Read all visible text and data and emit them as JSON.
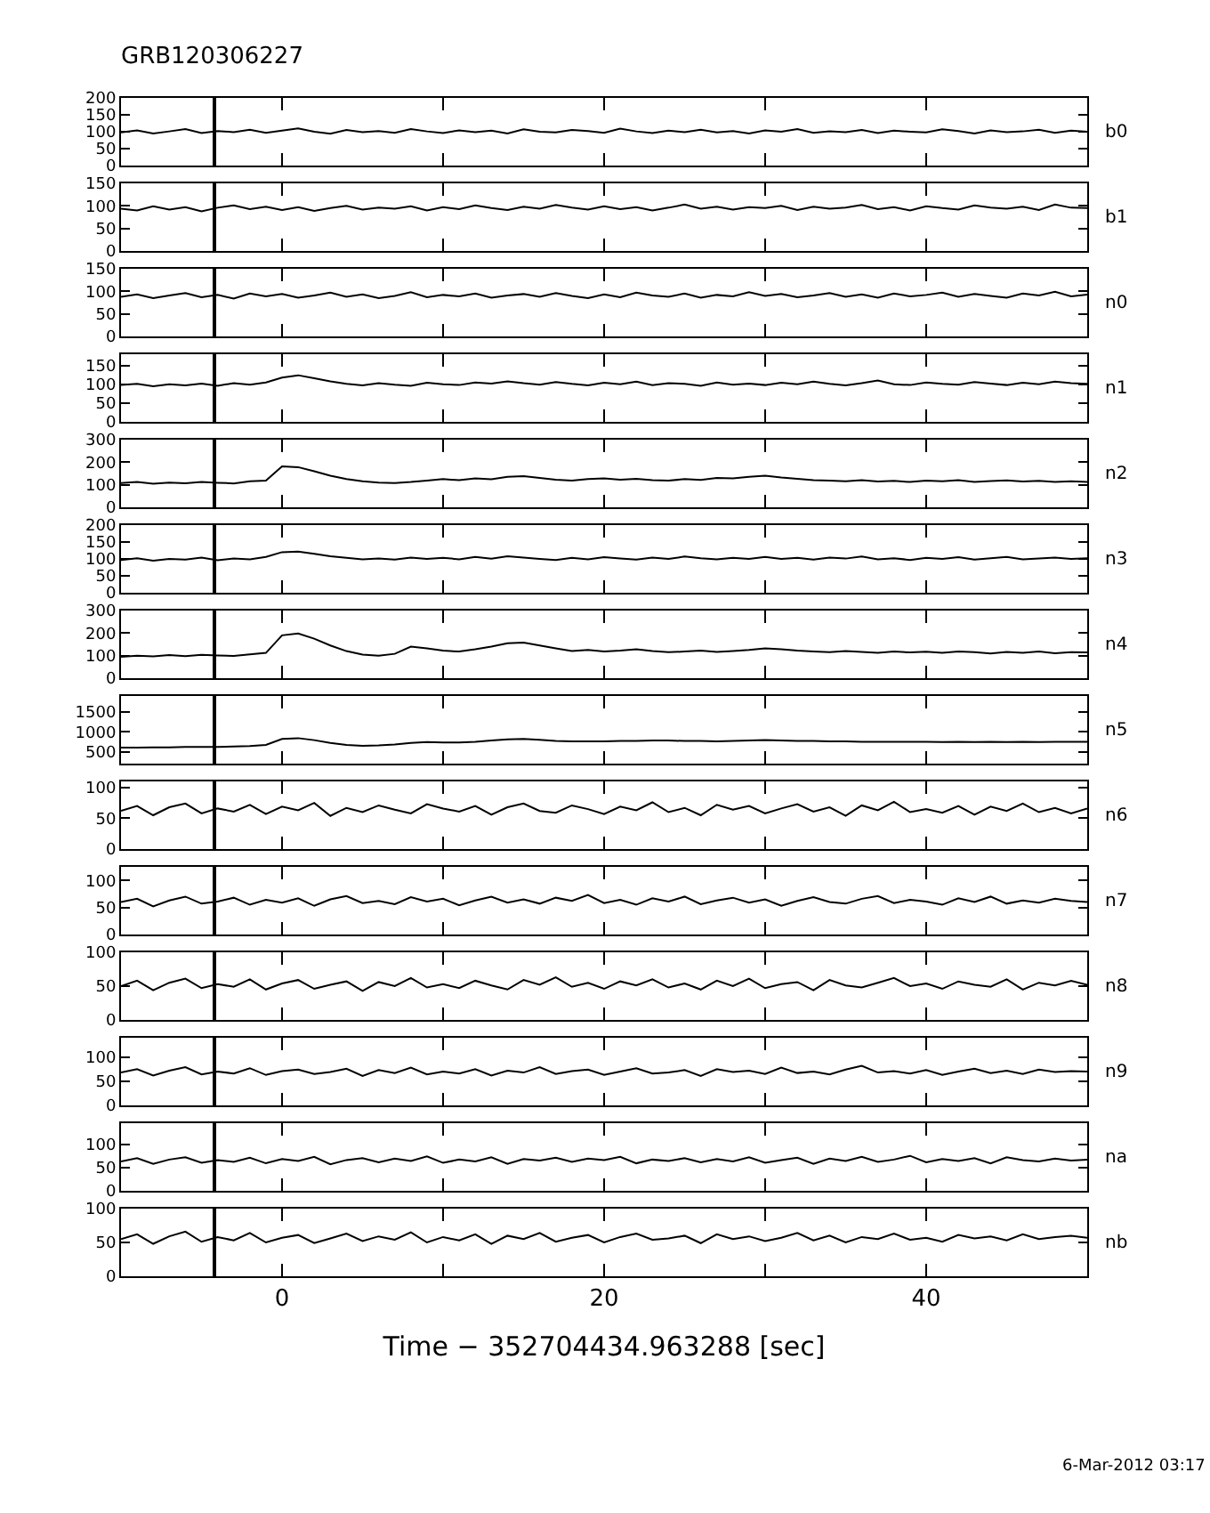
{
  "chart_data": [
    {
      "type": "line",
      "title": "GRB120306227",
      "x": [
        -10,
        -9,
        -8,
        -7,
        -6,
        -5,
        -4,
        -3,
        -2,
        -1,
        0,
        1,
        2,
        3,
        4,
        5,
        6,
        7,
        8,
        9,
        10,
        11,
        12,
        13,
        14,
        15,
        16,
        17,
        18,
        19,
        20,
        21,
        22,
        23,
        24,
        25,
        26,
        27,
        28,
        29,
        30,
        31,
        32,
        33,
        34,
        35,
        36,
        37,
        38,
        39,
        40,
        41,
        42,
        43,
        44,
        45,
        46,
        47,
        48,
        49,
        50
      ],
      "xlim": [
        -10,
        50
      ],
      "xticks": [
        {
          "value": 0,
          "label": null
        },
        {
          "value": 10,
          "label": null
        },
        {
          "value": 20,
          "label": null
        },
        {
          "value": 30,
          "label": null
        },
        {
          "value": 40,
          "label": null
        }
      ],
      "ylim": [
        0,
        200
      ],
      "yticks": [
        0,
        50,
        100,
        150,
        200
      ],
      "tick_labels": "y",
      "ref_lines": [
        {
          "axis": "x",
          "value": -4.2
        }
      ],
      "series": [
        {
          "name": "b0",
          "color": "#000000",
          "values": [
            98,
            104,
            95,
            101,
            108,
            96,
            102,
            99,
            106,
            97,
            103,
            110,
            100,
            94,
            105,
            99,
            102,
            97,
            108,
            101,
            96,
            104,
            99,
            103,
            95,
            107,
            100,
            98,
            105,
            102,
            97,
            109,
            101,
            96,
            103,
            99,
            106,
            98,
            102,
            95,
            104,
            100,
            108,
            97,
            101,
            99,
            105,
            96,
            103,
            100,
            98,
            107,
            102,
            95,
            104,
            99,
            101,
            106,
            97,
            103,
            100
          ]
        }
      ]
    },
    {
      "type": "line",
      "x": [
        -10,
        -9,
        -8,
        -7,
        -6,
        -5,
        -4,
        -3,
        -2,
        -1,
        0,
        1,
        2,
        3,
        4,
        5,
        6,
        7,
        8,
        9,
        10,
        11,
        12,
        13,
        14,
        15,
        16,
        17,
        18,
        19,
        20,
        21,
        22,
        23,
        24,
        25,
        26,
        27,
        28,
        29,
        30,
        31,
        32,
        33,
        34,
        35,
        36,
        37,
        38,
        39,
        40,
        41,
        42,
        43,
        44,
        45,
        46,
        47,
        48,
        49,
        50
      ],
      "xlim": [
        -10,
        50
      ],
      "xticks": [
        {
          "value": 0,
          "label": null
        },
        {
          "value": 10,
          "label": null
        },
        {
          "value": 20,
          "label": null
        },
        {
          "value": 30,
          "label": null
        },
        {
          "value": 40,
          "label": null
        }
      ],
      "ylim": [
        0,
        150
      ],
      "yticks": [
        0,
        50,
        100,
        150
      ],
      "tick_labels": "y",
      "ref_lines": [
        {
          "axis": "x",
          "value": -4.2
        }
      ],
      "series": [
        {
          "name": "b1",
          "color": "#000000",
          "values": [
            94,
            90,
            99,
            92,
            97,
            88,
            96,
            101,
            93,
            98,
            91,
            97,
            89,
            95,
            100,
            92,
            96,
            94,
            99,
            90,
            97,
            93,
            101,
            95,
            91,
            98,
            94,
            102,
            96,
            92,
            99,
            93,
            97,
            90,
            96,
            103,
            94,
            98,
            92,
            97,
            95,
            100,
            91,
            98,
            94,
            96,
            102,
            93,
            97,
            90,
            99,
            95,
            92,
            101,
            96,
            94,
            98,
            91,
            103,
            96,
            95
          ]
        }
      ]
    },
    {
      "type": "line",
      "x": [
        -10,
        -9,
        -8,
        -7,
        -6,
        -5,
        -4,
        -3,
        -2,
        -1,
        0,
        1,
        2,
        3,
        4,
        5,
        6,
        7,
        8,
        9,
        10,
        11,
        12,
        13,
        14,
        15,
        16,
        17,
        18,
        19,
        20,
        21,
        22,
        23,
        24,
        25,
        26,
        27,
        28,
        29,
        30,
        31,
        32,
        33,
        34,
        35,
        36,
        37,
        38,
        39,
        40,
        41,
        42,
        43,
        44,
        45,
        46,
        47,
        48,
        49,
        50
      ],
      "xlim": [
        -10,
        50
      ],
      "xticks": [
        {
          "value": 0,
          "label": null
        },
        {
          "value": 10,
          "label": null
        },
        {
          "value": 20,
          "label": null
        },
        {
          "value": 30,
          "label": null
        },
        {
          "value": 40,
          "label": null
        }
      ],
      "ylim": [
        0,
        150
      ],
      "yticks": [
        0,
        50,
        100,
        150
      ],
      "tick_labels": "y",
      "ref_lines": [
        {
          "axis": "x",
          "value": -4.2
        }
      ],
      "series": [
        {
          "name": "n0",
          "color": "#000000",
          "values": [
            88,
            93,
            85,
            91,
            96,
            87,
            92,
            84,
            95,
            89,
            94,
            86,
            91,
            97,
            88,
            93,
            85,
            90,
            98,
            87,
            92,
            89,
            95,
            86,
            91,
            94,
            88,
            96,
            90,
            85,
            93,
            87,
            97,
            91,
            88,
            95,
            86,
            92,
            89,
            98,
            90,
            94,
            87,
            91,
            96,
            88,
            93,
            86,
            95,
            89,
            92,
            97,
            88,
            94,
            90,
            86,
            95,
            91,
            99,
            89,
            93
          ]
        }
      ]
    },
    {
      "type": "line",
      "x": [
        -10,
        -9,
        -8,
        -7,
        -6,
        -5,
        -4,
        -3,
        -2,
        -1,
        0,
        1,
        2,
        3,
        4,
        5,
        6,
        7,
        8,
        9,
        10,
        11,
        12,
        13,
        14,
        15,
        16,
        17,
        18,
        19,
        20,
        21,
        22,
        23,
        24,
        25,
        26,
        27,
        28,
        29,
        30,
        31,
        32,
        33,
        34,
        35,
        36,
        37,
        38,
        39,
        40,
        41,
        42,
        43,
        44,
        45,
        46,
        47,
        48,
        49,
        50
      ],
      "xlim": [
        -10,
        50
      ],
      "xticks": [
        {
          "value": 0,
          "label": null
        },
        {
          "value": 10,
          "label": null
        },
        {
          "value": 20,
          "label": null
        },
        {
          "value": 30,
          "label": null
        },
        {
          "value": 40,
          "label": null
        }
      ],
      "ylim": [
        0,
        180
      ],
      "yticks": [
        0,
        50,
        100,
        150
      ],
      "tick_labels": "y",
      "ref_lines": [
        {
          "axis": "x",
          "value": -4.2
        }
      ],
      "series": [
        {
          "name": "n1",
          "color": "#000000",
          "values": [
            98,
            101,
            95,
            100,
            97,
            102,
            96,
            103,
            99,
            105,
            118,
            124,
            116,
            108,
            101,
            97,
            103,
            99,
            96,
            104,
            100,
            98,
            105,
            102,
            108,
            103,
            99,
            106,
            101,
            97,
            104,
            100,
            107,
            98,
            103,
            101,
            96,
            105,
            99,
            102,
            98,
            104,
            100,
            107,
            101,
            97,
            103,
            110,
            100,
            98,
            105,
            101,
            99,
            106,
            102,
            98,
            104,
            100,
            107,
            103,
            101
          ]
        }
      ]
    },
    {
      "type": "line",
      "x": [
        -10,
        -9,
        -8,
        -7,
        -6,
        -5,
        -4,
        -3,
        -2,
        -1,
        0,
        1,
        2,
        3,
        4,
        5,
        6,
        7,
        8,
        9,
        10,
        11,
        12,
        13,
        14,
        15,
        16,
        17,
        18,
        19,
        20,
        21,
        22,
        23,
        24,
        25,
        26,
        27,
        28,
        29,
        30,
        31,
        32,
        33,
        34,
        35,
        36,
        37,
        38,
        39,
        40,
        41,
        42,
        43,
        44,
        45,
        46,
        47,
        48,
        49,
        50
      ],
      "xlim": [
        -10,
        50
      ],
      "xticks": [
        {
          "value": 0,
          "label": null
        },
        {
          "value": 10,
          "label": null
        },
        {
          "value": 20,
          "label": null
        },
        {
          "value": 30,
          "label": null
        },
        {
          "value": 40,
          "label": null
        }
      ],
      "ylim": [
        0,
        300
      ],
      "yticks": [
        0,
        100,
        200,
        300
      ],
      "tick_labels": "y",
      "ref_lines": [
        {
          "axis": "x",
          "value": -4.2
        }
      ],
      "series": [
        {
          "name": "n2",
          "color": "#000000",
          "values": [
            108,
            112,
            105,
            110,
            107,
            113,
            109,
            106,
            115,
            118,
            182,
            178,
            160,
            140,
            125,
            115,
            110,
            108,
            112,
            118,
            125,
            120,
            128,
            124,
            135,
            138,
            130,
            122,
            118,
            125,
            128,
            122,
            126,
            120,
            118,
            125,
            121,
            130,
            128,
            135,
            140,
            132,
            126,
            120,
            118,
            115,
            120,
            114,
            117,
            112,
            118,
            115,
            120,
            113,
            116,
            119,
            114,
            117,
            112,
            115,
            113
          ]
        }
      ]
    },
    {
      "type": "line",
      "x": [
        -10,
        -9,
        -8,
        -7,
        -6,
        -5,
        -4,
        -3,
        -2,
        -1,
        0,
        1,
        2,
        3,
        4,
        5,
        6,
        7,
        8,
        9,
        10,
        11,
        12,
        13,
        14,
        15,
        16,
        17,
        18,
        19,
        20,
        21,
        22,
        23,
        24,
        25,
        26,
        27,
        28,
        29,
        30,
        31,
        32,
        33,
        34,
        35,
        36,
        37,
        38,
        39,
        40,
        41,
        42,
        43,
        44,
        45,
        46,
        47,
        48,
        49,
        50
      ],
      "xlim": [
        -10,
        50
      ],
      "xticks": [
        {
          "value": 0,
          "label": null
        },
        {
          "value": 10,
          "label": null
        },
        {
          "value": 20,
          "label": null
        },
        {
          "value": 30,
          "label": null
        },
        {
          "value": 40,
          "label": null
        }
      ],
      "ylim": [
        0,
        200
      ],
      "yticks": [
        0,
        50,
        100,
        150,
        200
      ],
      "tick_labels": "y",
      "ref_lines": [
        {
          "axis": "x",
          "value": -4.2
        }
      ],
      "series": [
        {
          "name": "n3",
          "color": "#000000",
          "values": [
            97,
            102,
            95,
            100,
            98,
            104,
            96,
            101,
            99,
            106,
            120,
            122,
            115,
            108,
            103,
            99,
            101,
            98,
            104,
            100,
            103,
            99,
            106,
            101,
            108,
            104,
            100,
            97,
            103,
            99,
            105,
            101,
            98,
            104,
            100,
            107,
            102,
            99,
            103,
            100,
            106,
            100,
            103,
            98,
            104,
            101,
            107,
            99,
            102,
            97,
            103,
            100,
            105,
            98,
            102,
            106,
            99,
            101,
            104,
            100,
            102
          ]
        }
      ]
    },
    {
      "type": "line",
      "x": [
        -10,
        -9,
        -8,
        -7,
        -6,
        -5,
        -4,
        -3,
        -2,
        -1,
        0,
        1,
        2,
        3,
        4,
        5,
        6,
        7,
        8,
        9,
        10,
        11,
        12,
        13,
        14,
        15,
        16,
        17,
        18,
        19,
        20,
        21,
        22,
        23,
        24,
        25,
        26,
        27,
        28,
        29,
        30,
        31,
        32,
        33,
        34,
        35,
        36,
        37,
        38,
        39,
        40,
        41,
        42,
        43,
        44,
        45,
        46,
        47,
        48,
        49,
        50
      ],
      "xlim": [
        -10,
        50
      ],
      "xticks": [
        {
          "value": 0,
          "label": null
        },
        {
          "value": 10,
          "label": null
        },
        {
          "value": 20,
          "label": null
        },
        {
          "value": 30,
          "label": null
        },
        {
          "value": 40,
          "label": null
        }
      ],
      "ylim": [
        0,
        300
      ],
      "yticks": [
        0,
        100,
        200,
        300
      ],
      "tick_labels": "y",
      "ref_lines": [
        {
          "axis": "x",
          "value": -4.2
        }
      ],
      "series": [
        {
          "name": "n4",
          "color": "#000000",
          "values": [
            95,
            100,
            97,
            103,
            98,
            104,
            101,
            99,
            106,
            112,
            190,
            198,
            175,
            145,
            120,
            105,
            100,
            108,
            140,
            132,
            122,
            118,
            128,
            140,
            155,
            158,
            145,
            132,
            120,
            125,
            118,
            122,
            128,
            120,
            115,
            118,
            122,
            116,
            120,
            125,
            132,
            128,
            122,
            118,
            115,
            120,
            116,
            112,
            118,
            114,
            117,
            112,
            118,
            115,
            110,
            116,
            113,
            118,
            111,
            115,
            114
          ]
        }
      ]
    },
    {
      "type": "line",
      "x": [
        -10,
        -9,
        -8,
        -7,
        -6,
        -5,
        -4,
        -3,
        -2,
        -1,
        0,
        1,
        2,
        3,
        4,
        5,
        6,
        7,
        8,
        9,
        10,
        11,
        12,
        13,
        14,
        15,
        16,
        17,
        18,
        19,
        20,
        21,
        22,
        23,
        24,
        25,
        26,
        27,
        28,
        29,
        30,
        31,
        32,
        33,
        34,
        35,
        36,
        37,
        38,
        39,
        40,
        41,
        42,
        43,
        44,
        45,
        46,
        47,
        48,
        49,
        50
      ],
      "xlim": [
        -10,
        50
      ],
      "xticks": [
        {
          "value": 0,
          "label": null
        },
        {
          "value": 10,
          "label": null
        },
        {
          "value": 20,
          "label": null
        },
        {
          "value": 30,
          "label": null
        },
        {
          "value": 40,
          "label": null
        }
      ],
      "ylim": [
        200,
        1900
      ],
      "yticks": [
        500,
        1000,
        1500
      ],
      "tick_labels": "y",
      "ref_lines": [
        {
          "axis": "x",
          "value": -4.2
        }
      ],
      "series": [
        {
          "name": "n5",
          "color": "#000000",
          "values": [
            600,
            600,
            610,
            610,
            620,
            620,
            620,
            630,
            640,
            670,
            820,
            840,
            790,
            720,
            670,
            650,
            660,
            680,
            720,
            740,
            730,
            730,
            750,
            780,
            810,
            820,
            800,
            770,
            760,
            760,
            760,
            770,
            770,
            780,
            780,
            770,
            770,
            760,
            770,
            780,
            790,
            780,
            770,
            770,
            760,
            760,
            750,
            750,
            750,
            750,
            750,
            740,
            750,
            740,
            750,
            740,
            750,
            740,
            750,
            750,
            750
          ]
        }
      ]
    },
    {
      "type": "line",
      "x": [
        -10,
        -9,
        -8,
        -7,
        -6,
        -5,
        -4,
        -3,
        -2,
        -1,
        0,
        1,
        2,
        3,
        4,
        5,
        6,
        7,
        8,
        9,
        10,
        11,
        12,
        13,
        14,
        15,
        16,
        17,
        18,
        19,
        20,
        21,
        22,
        23,
        24,
        25,
        26,
        27,
        28,
        29,
        30,
        31,
        32,
        33,
        34,
        35,
        36,
        37,
        38,
        39,
        40,
        41,
        42,
        43,
        44,
        45,
        46,
        47,
        48,
        49,
        50
      ],
      "xlim": [
        -10,
        50
      ],
      "xticks": [
        {
          "value": 0,
          "label": null
        },
        {
          "value": 10,
          "label": null
        },
        {
          "value": 20,
          "label": null
        },
        {
          "value": 30,
          "label": null
        },
        {
          "value": 40,
          "label": null
        }
      ],
      "ylim": [
        0,
        110
      ],
      "yticks": [
        0,
        50,
        100
      ],
      "tick_labels": "y",
      "ref_lines": [
        {
          "axis": "x",
          "value": -4.2
        }
      ],
      "series": [
        {
          "name": "n6",
          "color": "#000000",
          "values": [
            62,
            70,
            55,
            68,
            74,
            58,
            66,
            61,
            72,
            57,
            69,
            63,
            75,
            54,
            67,
            60,
            71,
            64,
            58,
            73,
            66,
            61,
            70,
            56,
            68,
            74,
            62,
            59,
            71,
            65,
            57,
            69,
            63,
            76,
            60,
            67,
            55,
            72,
            64,
            70,
            58,
            66,
            73,
            61,
            68,
            54,
            71,
            63,
            77,
            60,
            65,
            59,
            70,
            56,
            69,
            62,
            74,
            60,
            67,
            58,
            66
          ]
        }
      ]
    },
    {
      "type": "line",
      "x": [
        -10,
        -9,
        -8,
        -7,
        -6,
        -5,
        -4,
        -3,
        -2,
        -1,
        0,
        1,
        2,
        3,
        4,
        5,
        6,
        7,
        8,
        9,
        10,
        11,
        12,
        13,
        14,
        15,
        16,
        17,
        18,
        19,
        20,
        21,
        22,
        23,
        24,
        25,
        26,
        27,
        28,
        29,
        30,
        31,
        32,
        33,
        34,
        35,
        36,
        37,
        38,
        39,
        40,
        41,
        42,
        43,
        44,
        45,
        46,
        47,
        48,
        49,
        50
      ],
      "xlim": [
        -10,
        50
      ],
      "xticks": [
        {
          "value": 0,
          "label": null
        },
        {
          "value": 10,
          "label": null
        },
        {
          "value": 20,
          "label": null
        },
        {
          "value": 30,
          "label": null
        },
        {
          "value": 40,
          "label": null
        }
      ],
      "ylim": [
        0,
        125
      ],
      "yticks": [
        0,
        50,
        100
      ],
      "tick_labels": "y",
      "ref_lines": [
        {
          "axis": "x",
          "value": -4.2
        }
      ],
      "series": [
        {
          "name": "n7",
          "color": "#000000",
          "values": [
            60,
            66,
            52,
            63,
            70,
            57,
            61,
            68,
            55,
            64,
            59,
            67,
            53,
            65,
            71,
            58,
            62,
            56,
            69,
            61,
            66,
            54,
            63,
            70,
            59,
            65,
            57,
            68,
            62,
            73,
            58,
            64,
            55,
            67,
            61,
            70,
            56,
            63,
            68,
            59,
            65,
            53,
            62,
            69,
            60,
            57,
            66,
            71,
            58,
            64,
            61,
            55,
            67,
            60,
            70,
            57,
            63,
            59,
            66,
            62,
            60
          ]
        }
      ]
    },
    {
      "type": "line",
      "x": [
        -10,
        -9,
        -8,
        -7,
        -6,
        -5,
        -4,
        -3,
        -2,
        -1,
        0,
        1,
        2,
        3,
        4,
        5,
        6,
        7,
        8,
        9,
        10,
        11,
        12,
        13,
        14,
        15,
        16,
        17,
        18,
        19,
        20,
        21,
        22,
        23,
        24,
        25,
        26,
        27,
        28,
        29,
        30,
        31,
        32,
        33,
        34,
        35,
        36,
        37,
        38,
        39,
        40,
        41,
        42,
        43,
        44,
        45,
        46,
        47,
        48,
        49,
        50
      ],
      "xlim": [
        -10,
        50
      ],
      "xticks": [
        {
          "value": 0,
          "label": null
        },
        {
          "value": 10,
          "label": null
        },
        {
          "value": 20,
          "label": null
        },
        {
          "value": 30,
          "label": null
        },
        {
          "value": 40,
          "label": null
        }
      ],
      "ylim": [
        0,
        100
      ],
      "yticks": [
        0,
        50,
        100
      ],
      "tick_labels": "y",
      "ref_lines": [
        {
          "axis": "x",
          "value": -4.2
        }
      ],
      "series": [
        {
          "name": "n8",
          "color": "#000000",
          "values": [
            50,
            58,
            44,
            55,
            61,
            47,
            53,
            49,
            60,
            45,
            54,
            59,
            46,
            52,
            57,
            43,
            56,
            50,
            62,
            48,
            53,
            47,
            58,
            51,
            45,
            59,
            52,
            63,
            49,
            55,
            46,
            57,
            51,
            60,
            48,
            54,
            45,
            58,
            50,
            61,
            47,
            53,
            56,
            44,
            59,
            51,
            48,
            55,
            62,
            50,
            54,
            46,
            57,
            52,
            49,
            60,
            45,
            55,
            51,
            58,
            52
          ]
        }
      ]
    },
    {
      "type": "line",
      "x": [
        -10,
        -9,
        -8,
        -7,
        -6,
        -5,
        -4,
        -3,
        -2,
        -1,
        0,
        1,
        2,
        3,
        4,
        5,
        6,
        7,
        8,
        9,
        10,
        11,
        12,
        13,
        14,
        15,
        16,
        17,
        18,
        19,
        20,
        21,
        22,
        23,
        24,
        25,
        26,
        27,
        28,
        29,
        30,
        31,
        32,
        33,
        34,
        35,
        36,
        37,
        38,
        39,
        40,
        41,
        42,
        43,
        44,
        45,
        46,
        47,
        48,
        49,
        50
      ],
      "xlim": [
        -10,
        50
      ],
      "xticks": [
        {
          "value": 0,
          "label": null
        },
        {
          "value": 10,
          "label": null
        },
        {
          "value": 20,
          "label": null
        },
        {
          "value": 30,
          "label": null
        },
        {
          "value": 40,
          "label": null
        }
      ],
      "ylim": [
        0,
        140
      ],
      "yticks": [
        0,
        50,
        100
      ],
      "tick_labels": "y",
      "ref_lines": [
        {
          "axis": "x",
          "value": -4.2
        }
      ],
      "series": [
        {
          "name": "n9",
          "color": "#000000",
          "values": [
            68,
            75,
            62,
            72,
            79,
            64,
            70,
            66,
            77,
            63,
            71,
            74,
            65,
            69,
            76,
            61,
            73,
            67,
            78,
            64,
            70,
            66,
            75,
            62,
            72,
            68,
            79,
            65,
            71,
            74,
            63,
            70,
            77,
            66,
            68,
            73,
            61,
            75,
            69,
            72,
            65,
            78,
            67,
            70,
            64,
            74,
            82,
            68,
            71,
            66,
            73,
            63,
            70,
            76,
            67,
            72,
            65,
            74,
            69,
            71,
            70
          ]
        }
      ]
    },
    {
      "type": "line",
      "x": [
        -10,
        -9,
        -8,
        -7,
        -6,
        -5,
        -4,
        -3,
        -2,
        -1,
        0,
        1,
        2,
        3,
        4,
        5,
        6,
        7,
        8,
        9,
        10,
        11,
        12,
        13,
        14,
        15,
        16,
        17,
        18,
        19,
        20,
        21,
        22,
        23,
        24,
        25,
        26,
        27,
        28,
        29,
        30,
        31,
        32,
        33,
        34,
        35,
        36,
        37,
        38,
        39,
        40,
        41,
        42,
        43,
        44,
        45,
        46,
        47,
        48,
        49,
        50
      ],
      "xlim": [
        -10,
        50
      ],
      "xticks": [
        {
          "value": 0,
          "label": null
        },
        {
          "value": 10,
          "label": null
        },
        {
          "value": 20,
          "label": null
        },
        {
          "value": 30,
          "label": null
        },
        {
          "value": 40,
          "label": null
        }
      ],
      "ylim": [
        0,
        145
      ],
      "yticks": [
        0,
        50,
        100
      ],
      "tick_labels": "y",
      "ref_lines": [
        {
          "axis": "x",
          "value": -4.2
        }
      ],
      "series": [
        {
          "name": "na",
          "color": "#000000",
          "values": [
            63,
            70,
            58,
            67,
            72,
            60,
            66,
            62,
            71,
            59,
            68,
            64,
            73,
            57,
            66,
            70,
            61,
            69,
            64,
            74,
            60,
            67,
            63,
            72,
            58,
            68,
            65,
            71,
            62,
            69,
            66,
            73,
            59,
            67,
            64,
            70,
            61,
            68,
            63,
            72,
            60,
            66,
            71,
            58,
            69,
            64,
            73,
            62,
            67,
            75,
            61,
            68,
            64,
            70,
            59,
            72,
            66,
            63,
            69,
            65,
            67
          ]
        }
      ]
    },
    {
      "type": "line",
      "xlabel": "Time − 352704434.963288 [sec]",
      "annotations": [
        "6-Mar-2012 03:17"
      ],
      "x": [
        -10,
        -9,
        -8,
        -7,
        -6,
        -5,
        -4,
        -3,
        -2,
        -1,
        0,
        1,
        2,
        3,
        4,
        5,
        6,
        7,
        8,
        9,
        10,
        11,
        12,
        13,
        14,
        15,
        16,
        17,
        18,
        19,
        20,
        21,
        22,
        23,
        24,
        25,
        26,
        27,
        28,
        29,
        30,
        31,
        32,
        33,
        34,
        35,
        36,
        37,
        38,
        39,
        40,
        41,
        42,
        43,
        44,
        45,
        46,
        47,
        48,
        49,
        50
      ],
      "xlim": [
        -10,
        50
      ],
      "xticks": [
        0,
        {
          "value": 10,
          "label": null
        },
        20,
        {
          "value": 30,
          "label": null
        },
        40
      ],
      "ylim": [
        0,
        100
      ],
      "yticks": [
        0,
        50,
        100
      ],
      "ref_lines": [
        {
          "axis": "x",
          "value": -4.2
        }
      ],
      "series": [
        {
          "name": "nb",
          "color": "#000000",
          "values": [
            55,
            62,
            48,
            59,
            66,
            51,
            58,
            53,
            64,
            50,
            57,
            61,
            49,
            56,
            63,
            52,
            59,
            54,
            65,
            50,
            58,
            53,
            62,
            48,
            60,
            55,
            64,
            51,
            57,
            61,
            50,
            58,
            63,
            54,
            56,
            60,
            49,
            62,
            55,
            59,
            52,
            57,
            64,
            53,
            60,
            50,
            58,
            55,
            63,
            54,
            57,
            51,
            61,
            56,
            59,
            53,
            62,
            55,
            58,
            60,
            57
          ]
        }
      ]
    }
  ]
}
